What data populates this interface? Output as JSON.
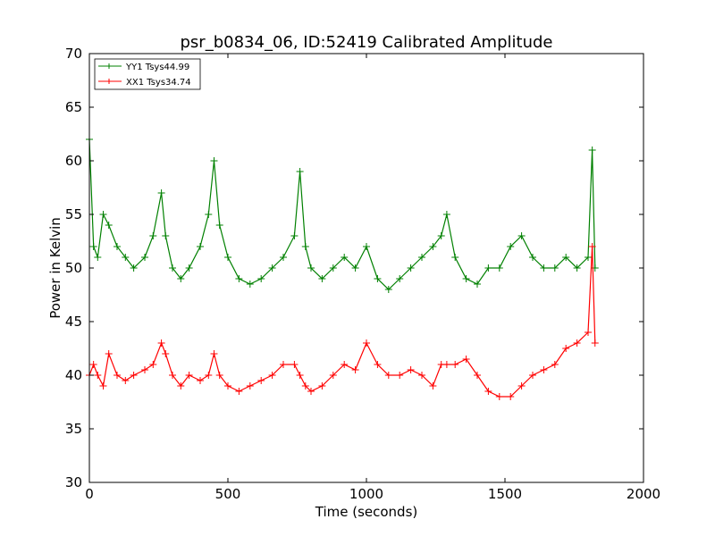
{
  "chart_data": {
    "type": "line",
    "title": "psr_b0834_06, ID:52419 Calibrated Amplitude",
    "xlabel": "Time (seconds)",
    "ylabel": "Power in Kelvin",
    "xlim": [
      0,
      2000
    ],
    "ylim": [
      30,
      70
    ],
    "xticks": [
      0,
      500,
      1000,
      1500,
      2000
    ],
    "yticks": [
      30,
      35,
      40,
      45,
      50,
      55,
      60,
      65,
      70
    ],
    "legend_position": "upper-left",
    "marker": "plus",
    "series": [
      {
        "name": "YY1 Tsys44.99",
        "color": "#008000",
        "x": [
          0,
          15,
          30,
          50,
          70,
          100,
          130,
          160,
          200,
          230,
          260,
          275,
          300,
          330,
          360,
          400,
          430,
          450,
          470,
          500,
          540,
          580,
          620,
          660,
          700,
          740,
          760,
          780,
          800,
          840,
          880,
          920,
          960,
          1000,
          1040,
          1080,
          1120,
          1160,
          1200,
          1240,
          1270,
          1290,
          1320,
          1360,
          1400,
          1440,
          1480,
          1520,
          1560,
          1600,
          1640,
          1680,
          1720,
          1760,
          1800,
          1815,
          1825
        ],
        "y": [
          62,
          52,
          51,
          55,
          54,
          52,
          51,
          50,
          51,
          53,
          57,
          53,
          50,
          49,
          50,
          52,
          55,
          60,
          54,
          51,
          49,
          48.5,
          49,
          50,
          51,
          53,
          59,
          52,
          50,
          49,
          50,
          51,
          50,
          52,
          49,
          48,
          49,
          50,
          51,
          52,
          53,
          55,
          51,
          49,
          48.5,
          50,
          50,
          52,
          53,
          51,
          50,
          50,
          51,
          50,
          51,
          61,
          50
        ]
      },
      {
        "name": "XX1 Tsys34.74",
        "color": "#ff0000",
        "x": [
          0,
          15,
          30,
          50,
          70,
          100,
          130,
          160,
          200,
          230,
          260,
          275,
          300,
          330,
          360,
          400,
          430,
          450,
          470,
          500,
          540,
          580,
          620,
          660,
          700,
          740,
          760,
          780,
          800,
          840,
          880,
          920,
          960,
          1000,
          1040,
          1080,
          1120,
          1160,
          1200,
          1240,
          1270,
          1290,
          1320,
          1360,
          1400,
          1440,
          1480,
          1520,
          1560,
          1600,
          1640,
          1680,
          1720,
          1760,
          1800,
          1815,
          1825
        ],
        "y": [
          40,
          41,
          40,
          39,
          42,
          40,
          39.5,
          40,
          40.5,
          41,
          43,
          42,
          40,
          39,
          40,
          39.5,
          40,
          42,
          40,
          39,
          38.5,
          39,
          39.5,
          40,
          41,
          41,
          40,
          39,
          38.5,
          39,
          40,
          41,
          40.5,
          43,
          41,
          40,
          40,
          40.5,
          40,
          39,
          41,
          41,
          41,
          41.5,
          40,
          38.5,
          38,
          38,
          39,
          40,
          40.5,
          41,
          42.5,
          43,
          44,
          52,
          43
        ]
      }
    ]
  }
}
